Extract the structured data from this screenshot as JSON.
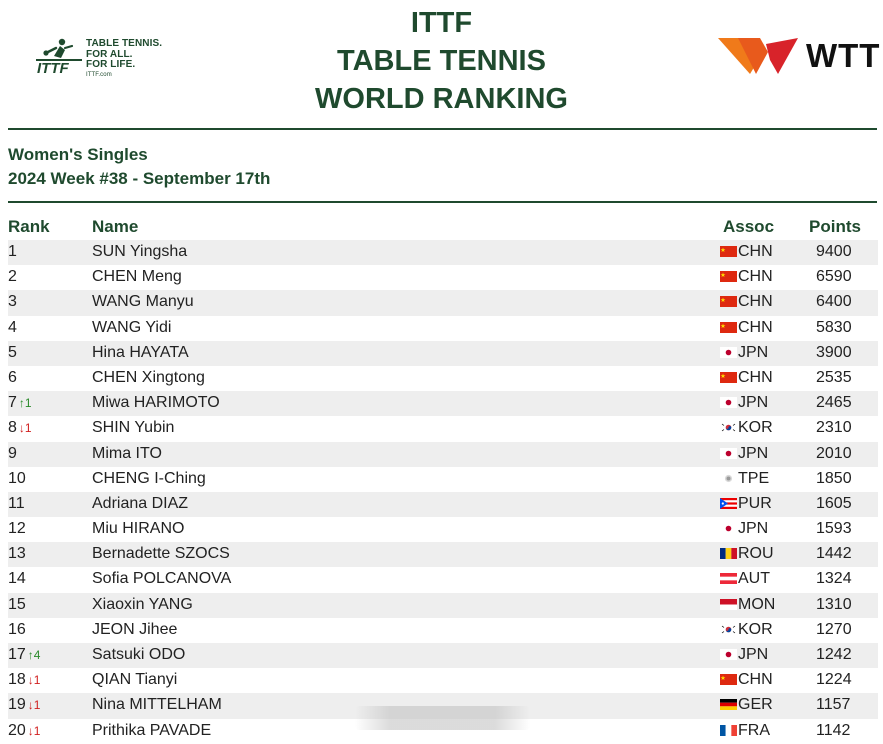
{
  "header": {
    "logo_left": {
      "line1": "TABLE TENNIS.",
      "line2": "FOR ALL.",
      "line3": "FOR LIFE.",
      "url": "ITTF.com"
    },
    "title_line1": "ITTF",
    "title_line2": "TABLE TENNIS",
    "title_line3": "WORLD RANKING",
    "logo_right_text": "WTT"
  },
  "subtitle": {
    "category": "Women's Singles",
    "week": "2024 Week #38 - September 17th"
  },
  "table": {
    "headers": {
      "rank": "Rank",
      "name": "Name",
      "assoc": "Assoc",
      "points": "Points"
    },
    "rows": [
      {
        "rank": "1",
        "move": "",
        "dir": "",
        "name": "SUN Yingsha",
        "assoc": "CHN",
        "flag": "china-flag-icon",
        "points": "9400"
      },
      {
        "rank": "2",
        "move": "",
        "dir": "",
        "name": "CHEN Meng",
        "assoc": "CHN",
        "flag": "china-flag-icon",
        "points": "6590"
      },
      {
        "rank": "3",
        "move": "",
        "dir": "",
        "name": "WANG Manyu",
        "assoc": "CHN",
        "flag": "china-flag-icon",
        "points": "6400"
      },
      {
        "rank": "4",
        "move": "",
        "dir": "",
        "name": "WANG Yidi",
        "assoc": "CHN",
        "flag": "china-flag-icon",
        "points": "5830"
      },
      {
        "rank": "5",
        "move": "",
        "dir": "",
        "name": "Hina HAYATA",
        "assoc": "JPN",
        "flag": "japan-flag-icon",
        "points": "3900"
      },
      {
        "rank": "6",
        "move": "",
        "dir": "",
        "name": "CHEN Xingtong",
        "assoc": "CHN",
        "flag": "china-flag-icon",
        "points": "2535"
      },
      {
        "rank": "7",
        "move": "↑1",
        "dir": "up",
        "name": "Miwa HARIMOTO",
        "assoc": "JPN",
        "flag": "japan-flag-icon",
        "points": "2465"
      },
      {
        "rank": "8",
        "move": "↓1",
        "dir": "down",
        "name": "SHIN Yubin",
        "assoc": "KOR",
        "flag": "korea-flag-icon",
        "points": "2310"
      },
      {
        "rank": "9",
        "move": "",
        "dir": "",
        "name": "Mima ITO",
        "assoc": "JPN",
        "flag": "japan-flag-icon",
        "points": "2010"
      },
      {
        "rank": "10",
        "move": "",
        "dir": "",
        "name": "CHENG I-Ching",
        "assoc": "TPE",
        "flag": "tpe-flag-icon",
        "points": "1850"
      },
      {
        "rank": "11",
        "move": "",
        "dir": "",
        "name": "Adriana DIAZ",
        "assoc": "PUR",
        "flag": "puerto-rico-flag-icon",
        "points": "1605"
      },
      {
        "rank": "12",
        "move": "",
        "dir": "",
        "name": "Miu HIRANO",
        "assoc": "JPN",
        "flag": "japan-flag-icon",
        "points": "1593"
      },
      {
        "rank": "13",
        "move": "",
        "dir": "",
        "name": "Bernadette SZOCS",
        "assoc": "ROU",
        "flag": "romania-flag-icon",
        "points": "1442"
      },
      {
        "rank": "14",
        "move": "",
        "dir": "",
        "name": "Sofia POLCANOVA",
        "assoc": "AUT",
        "flag": "austria-flag-icon",
        "points": "1324"
      },
      {
        "rank": "15",
        "move": "",
        "dir": "",
        "name": "Xiaoxin YANG",
        "assoc": "MON",
        "flag": "monaco-flag-icon",
        "points": "1310"
      },
      {
        "rank": "16",
        "move": "",
        "dir": "",
        "name": "JEON Jihee",
        "assoc": "KOR",
        "flag": "korea-flag-icon",
        "points": "1270"
      },
      {
        "rank": "17",
        "move": "↑4",
        "dir": "up",
        "name": "Satsuki ODO",
        "assoc": "JPN",
        "flag": "japan-flag-icon",
        "points": "1242"
      },
      {
        "rank": "18",
        "move": "↓1",
        "dir": "down",
        "name": "QIAN Tianyi",
        "assoc": "CHN",
        "flag": "china-flag-icon",
        "points": "1224"
      },
      {
        "rank": "19",
        "move": "↓1",
        "dir": "down",
        "name": "Nina MITTELHAM",
        "assoc": "GER",
        "flag": "germany-flag-icon",
        "points": "1157"
      },
      {
        "rank": "20",
        "move": "↓1",
        "dir": "down",
        "name": "Prithika PAVADE",
        "assoc": "FRA",
        "flag": "france-flag-icon",
        "points": "1142"
      }
    ]
  },
  "colors": {
    "brand_green": "#1f4a2e",
    "row_alt": "#eeeeee",
    "up": "#2a8a2a",
    "down": "#d02020",
    "wtt_orange": "#f07a1a",
    "wtt_red": "#d8232a"
  }
}
